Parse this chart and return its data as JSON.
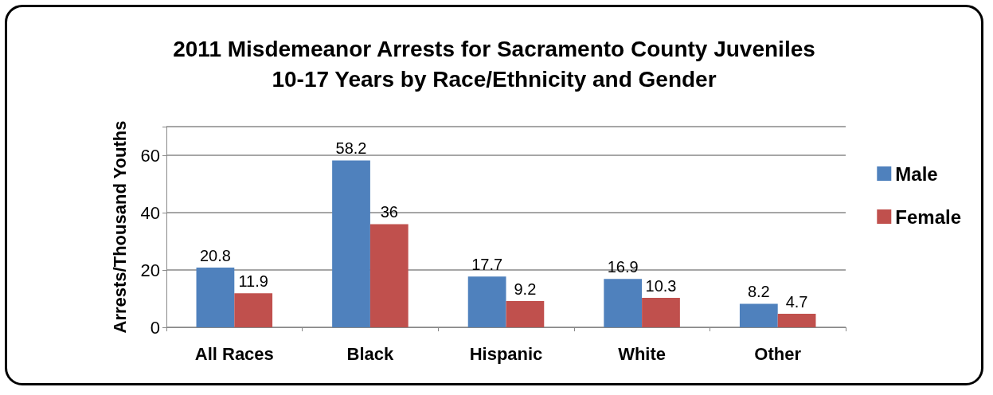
{
  "chart_data": {
    "type": "bar",
    "title": "2011 Misdemeanor Arrests for Sacramento County Juveniles\n10-17 Years by Race/Ethnicity and Gender",
    "ylabel": "Arrests/Thousand Youths",
    "categories": [
      "All Races",
      "Black",
      "Hispanic",
      "White",
      "Other"
    ],
    "series": [
      {
        "name": "Male",
        "color": "#4f81bd",
        "values": [
          20.8,
          58.2,
          17.7,
          16.9,
          8.2
        ]
      },
      {
        "name": "Female",
        "color": "#c0504d",
        "values": [
          11.9,
          36,
          9.2,
          10.3,
          4.7
        ]
      }
    ],
    "ylim": [
      0,
      70
    ],
    "yticks": [
      0,
      20,
      40,
      60,
      {
        "value": 70,
        "label": null
      }
    ],
    "grid": "y",
    "legend": "right",
    "data_labels": true
  }
}
